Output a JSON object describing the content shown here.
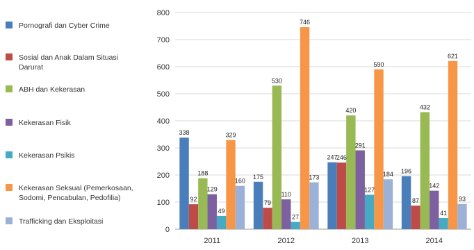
{
  "chart_data": {
    "type": "bar",
    "categories": [
      "2011",
      "2012",
      "2013",
      "2014"
    ],
    "series": [
      {
        "name": "Pornografi dan Cyber Crime",
        "values": [
          338,
          175,
          247,
          196
        ],
        "labels": [
          "338",
          "175",
          "247",
          "196"
        ],
        "color": "#4A7EBB"
      },
      {
        "name": "Sosial dan Anak Dalam Situasi Darurat",
        "values": [
          92,
          79,
          246,
          87
        ],
        "labels": [
          "92",
          "79",
          "246",
          "87"
        ],
        "color": "#BE4B48"
      },
      {
        "name": "ABH dan Kekerasan",
        "values": [
          188,
          530,
          420,
          432
        ],
        "labels": [
          "188",
          "530",
          "420",
          "432"
        ],
        "color": "#98B954"
      },
      {
        "name": "Kekerasan Fisik",
        "values": [
          129,
          110,
          291,
          142
        ],
        "labels": [
          "129",
          "110",
          "291",
          "142"
        ],
        "color": "#7D60A0"
      },
      {
        "name": "Kekerasan Psikis",
        "values": [
          49,
          27,
          127,
          41
        ],
        "labels": [
          "49",
          "27",
          "127",
          "41"
        ],
        "color": "#46AAC5"
      },
      {
        "name": "Kekerasan Seksual (Pemerkosaan, Sodomi, Pencabulan, Pedofilia)",
        "values": [
          329,
          746,
          590,
          621
        ],
        "labels": [
          "329",
          "746",
          "590",
          "621"
        ],
        "color": "#F79646"
      },
      {
        "name": "Trafficking dan Eksploitasi",
        "values": [
          160,
          173,
          184,
          93
        ],
        "labels": [
          "160",
          "173",
          "184",
          "93"
        ],
        "color": "#9CB1D8"
      }
    ],
    "yticks": [
      "0",
      "100",
      "200",
      "300",
      "400",
      "500",
      "600",
      "700",
      "800"
    ],
    "ylim": [
      0,
      800
    ],
    "grid": true,
    "legend": "left"
  }
}
